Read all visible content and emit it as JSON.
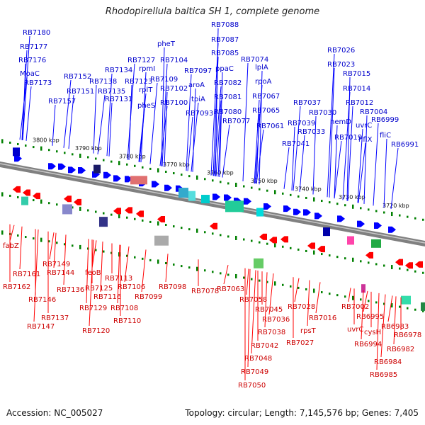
{
  "title": "Rhodopirellula baltica SH 1, complete genome",
  "footer": {
    "accession": "Accession: NC_005027",
    "summary": "Topology: circular; Length: 7,145,576 bp; Genes: 7,405"
  },
  "colors": {
    "forward": "#0000ff",
    "reverse": "#ff0000",
    "backbone": "#808080",
    "scale_ticks": "#008000",
    "forward_label": "#0000cc",
    "reverse_label": "#cc0000"
  },
  "scale_labels": [
    "3800 kbp",
    "3790 kbp",
    "3780 kbp",
    "3770 kbp",
    "3760 kbp",
    "3750 kbp",
    "3740 kbp",
    "3730 kbp",
    "3720 kbp"
  ],
  "forward_genes": [
    "RB7180",
    "RB7177",
    "RB7176",
    "MoaC",
    "RB7173",
    "RB7157",
    "RB7152",
    "RB7151",
    "RB7138",
    "RB7135",
    "RB7134",
    "RB7131",
    "RB7127",
    "rpmI",
    "RB7123",
    "rplT",
    "pheS",
    "pheT",
    "RB7109",
    "RB7104",
    "RB7102",
    "RB7100",
    "RB7097",
    "aroA",
    "tpiA",
    "RB7093",
    "RB7088",
    "RB7087",
    "RB7085",
    "ppaC",
    "RB7082",
    "RB7081",
    "RB7080",
    "RB7077",
    "RB7074",
    "lplA",
    "rpoA",
    "RB7067",
    "RB7065",
    "RB7061",
    "RB7041",
    "RB7039",
    "RB7037",
    "RB7033",
    "RB7030",
    "RB7026",
    "RB7023",
    "RB7015",
    "RB7014",
    "RB7012",
    "hemD",
    "RB7019",
    "uvrC",
    "RB7004",
    "hflX",
    "RB6999",
    "fliC",
    "RB6991"
  ],
  "reverse_genes": [
    "fabZ",
    "RB7161",
    "RB7162",
    "RB7149",
    "RB7144",
    "RB7146",
    "RB7147",
    "RB7136",
    "RB7137",
    "feoB",
    "RB7129",
    "RB7125",
    "RB7120",
    "RB7116",
    "RB7113",
    "RB7106",
    "RB7108",
    "RB7110",
    "RB7099",
    "RB7098",
    "RB7078",
    "RB7063",
    "RB7058",
    "RB7045",
    "RB7036",
    "RB7038",
    "RB7042",
    "RB7048",
    "RB7049",
    "RB7050",
    "RB7028",
    "rpsT",
    "RB7027",
    "RB7016",
    "RB7002",
    "uvrC",
    "RB6995",
    "RB6994",
    "cysH",
    "RB6983",
    "RB6982",
    "RB6978",
    "RB6984",
    "RB6985"
  ]
}
